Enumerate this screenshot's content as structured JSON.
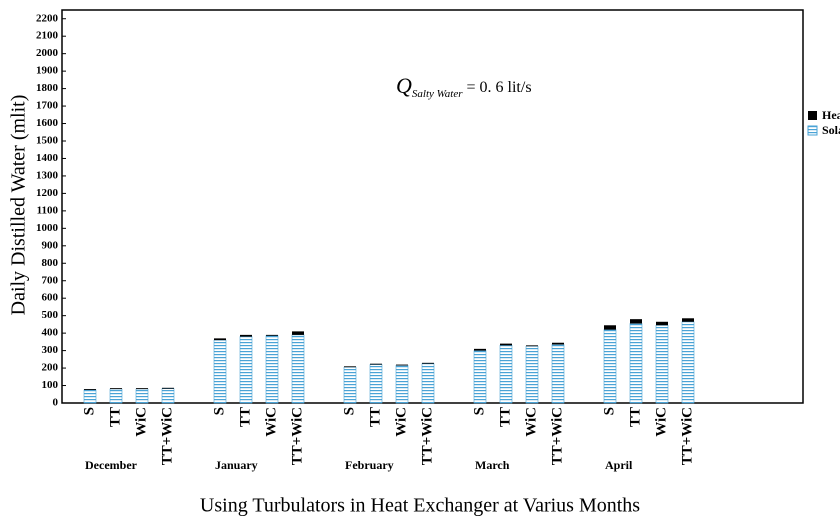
{
  "chart_data": {
    "type": "stacked-bar",
    "annotation": {
      "symbol": "Q",
      "subscript": "Salty Water",
      "text": "= 0. 6  lit/s"
    },
    "x_label": "Using Turbulators in Heat Exchanger at Varius Months",
    "y_label": "Daily Distilled Water (mlit)",
    "groups": [
      {
        "name": "December",
        "categories": [
          "S",
          "TT",
          "WiC",
          "TT+WiC"
        ]
      },
      {
        "name": "January",
        "categories": [
          "S",
          "TT",
          "WiC",
          "TT+WiC"
        ]
      },
      {
        "name": "February",
        "categories": [
          "S",
          "TT",
          "WiC",
          "TT+WiC"
        ]
      },
      {
        "name": "March",
        "categories": [
          "S",
          "TT",
          "WiC",
          "TT+WiC"
        ]
      },
      {
        "name": "April",
        "categories": [
          "S",
          "TT",
          "WiC",
          "TT+WiC"
        ]
      }
    ],
    "series": [
      {
        "name": "Solar Still",
        "color": "#4aa3d6",
        "values": [
          75,
          80,
          80,
          82,
          360,
          380,
          385,
          390,
          205,
          220,
          215,
          225,
          300,
          330,
          325,
          335,
          420,
          455,
          445,
          465
        ]
      },
      {
        "name": "Heat Storage",
        "color": "#000000",
        "values": [
          5,
          5,
          5,
          5,
          10,
          10,
          5,
          20,
          5,
          5,
          5,
          5,
          10,
          10,
          5,
          10,
          25,
          25,
          20,
          20
        ]
      }
    ],
    "ylim": [
      0,
      2250
    ],
    "yticks": [
      0,
      100,
      200,
      300,
      400,
      500,
      600,
      700,
      800,
      900,
      1000,
      1100,
      1200,
      1300,
      1400,
      1500,
      1600,
      1700,
      1800,
      1900,
      2000,
      2100,
      2200
    ],
    "grid": false
  }
}
